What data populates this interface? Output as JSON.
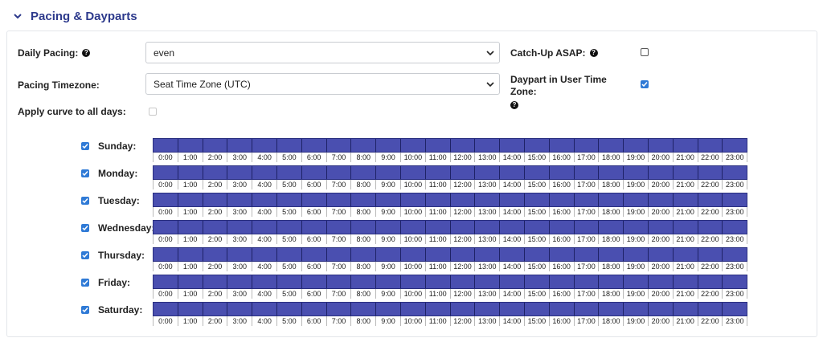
{
  "section": {
    "title": "Pacing & Dayparts",
    "chevron_icon": "chevron-down-icon"
  },
  "form": {
    "daily_pacing": {
      "label": "Daily Pacing:",
      "value": "even"
    },
    "catch_up_asap": {
      "label": "Catch-Up ASAP:",
      "checked": false
    },
    "pacing_timezone": {
      "label": "Pacing Timezone:",
      "value": "Seat Time Zone (UTC)"
    },
    "daypart_user_tz": {
      "label": "Daypart in User Time Zone:",
      "checked": true
    },
    "apply_curve": {
      "label": "Apply curve to all days:",
      "checked": false,
      "disabled": true
    },
    "help_glyph": "?"
  },
  "hours": [
    "0:00",
    "1:00",
    "2:00",
    "3:00",
    "4:00",
    "5:00",
    "6:00",
    "7:00",
    "8:00",
    "9:00",
    "10:00",
    "11:00",
    "12:00",
    "13:00",
    "14:00",
    "15:00",
    "16:00",
    "17:00",
    "18:00",
    "19:00",
    "20:00",
    "21:00",
    "22:00",
    "23:00"
  ],
  "days": [
    {
      "name": "Sunday:",
      "checked": true
    },
    {
      "name": "Monday:",
      "checked": true
    },
    {
      "name": "Tuesday:",
      "checked": true
    },
    {
      "name": "Wednesday:",
      "checked": true
    },
    {
      "name": "Thursday:",
      "checked": true
    },
    {
      "name": "Friday:",
      "checked": true
    },
    {
      "name": "Saturday:",
      "checked": true
    }
  ],
  "colors": {
    "accent": "#2f7ad6",
    "heading": "#2d3a8c",
    "daypart_fill": "#4a4fb0"
  }
}
